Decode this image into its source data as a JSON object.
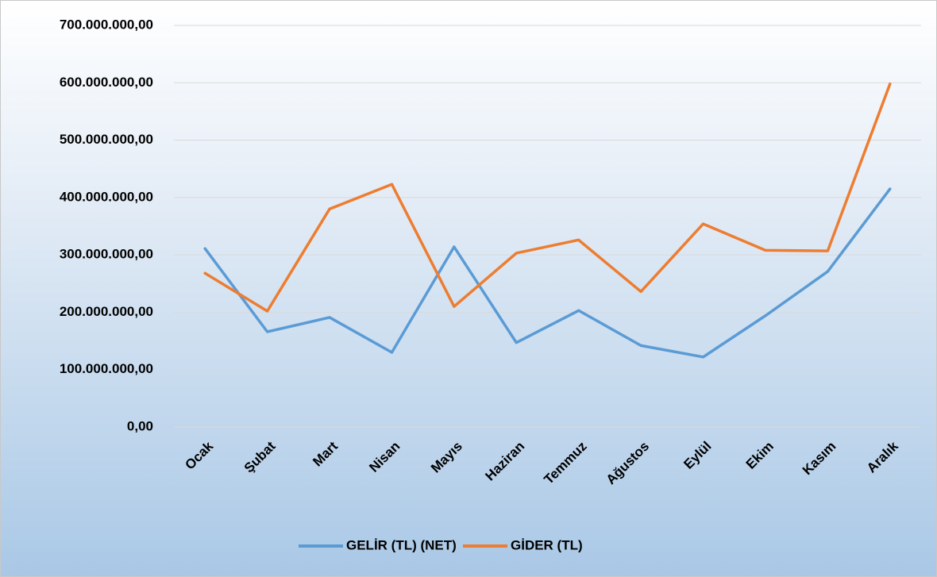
{
  "chart_data": {
    "type": "line",
    "categories": [
      "Ocak",
      "Şubat",
      "Mart",
      "Nisan",
      "Mayıs",
      "Haziran",
      "Temmuz",
      "Ağustos",
      "Eylül",
      "Ekim",
      "Kasım",
      "Aralık"
    ],
    "series": [
      {
        "name": "GELİR (TL) (NET)",
        "color": "#5b9bd5",
        "values": [
          311000000,
          166000000,
          191000000,
          130000000,
          314000000,
          147000000,
          203000000,
          142000000,
          122000000,
          194000000,
          271000000,
          415000000
        ]
      },
      {
        "name": "GİDER (TL)",
        "color": "#ed7d31",
        "values": [
          268000000,
          202000000,
          380000000,
          423000000,
          210000000,
          303000000,
          326000000,
          236000000,
          354000000,
          308000000,
          307000000,
          598000000
        ]
      }
    ],
    "ylim": [
      0,
      700000000
    ],
    "yticks": [
      {
        "value": 0,
        "label": "0,00"
      },
      {
        "value": 100000000,
        "label": "100.000.000,00"
      },
      {
        "value": 200000000,
        "label": "200.000.000,00"
      },
      {
        "value": 300000000,
        "label": "300.000.000,00"
      },
      {
        "value": 400000000,
        "label": "400.000.000,00"
      },
      {
        "value": 500000000,
        "label": "500.000.000,00"
      },
      {
        "value": 600000000,
        "label": "600.000.000,00"
      },
      {
        "value": 700000000,
        "label": "700.000.000,00"
      }
    ],
    "grid": true,
    "legend": "bottom"
  }
}
